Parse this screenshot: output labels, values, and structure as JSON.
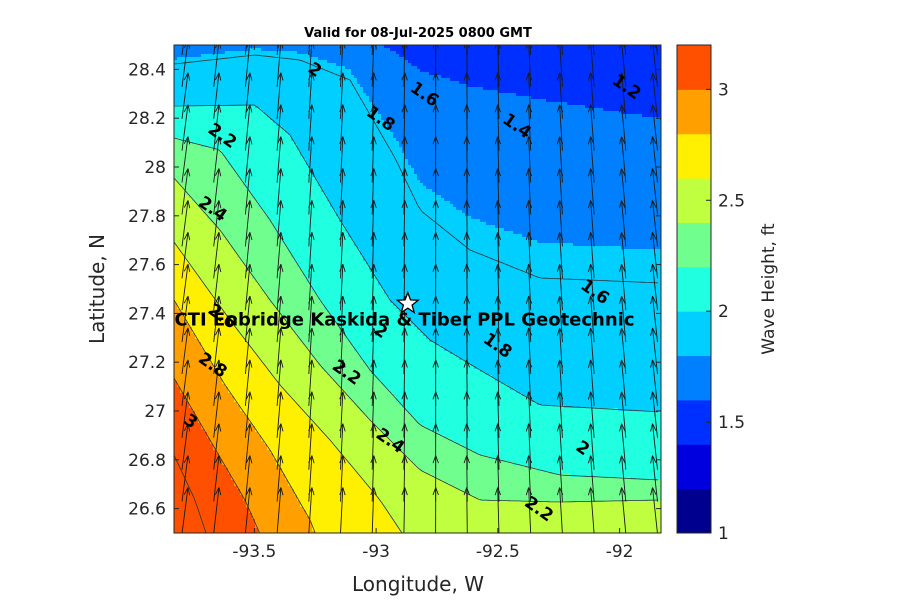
{
  "chart_data": {
    "type": "heatmap",
    "subtype": "filled-contour-with-vector-field",
    "title": "Valid for 08-Jul-2025 0800 GMT",
    "xlabel": "Longitude, W",
    "ylabel": "Latitude, N",
    "colorbar_label": "Wave Height, ft",
    "xlim": [
      -93.83,
      -91.83
    ],
    "ylim": [
      26.5,
      28.5
    ],
    "clim": [
      1.0,
      3.2
    ],
    "x_ticks": [
      -93.5,
      -93,
      -92.5,
      -92
    ],
    "x_tick_labels": [
      "-93.5",
      "-93",
      "-92.5",
      "-92"
    ],
    "y_ticks": [
      26.6,
      26.8,
      27.0,
      27.2,
      27.4,
      27.6,
      27.8,
      28.0,
      28.2,
      28.4
    ],
    "y_tick_labels": [
      "26.6",
      "26.8",
      "27",
      "27.2",
      "27.4",
      "27.6",
      "27.8",
      "28",
      "28.2",
      "28.4"
    ],
    "colorbar_ticks": [
      1,
      1.5,
      2,
      2.5,
      3
    ],
    "colorbar_tick_labels": [
      "1",
      "1.5",
      "2",
      "2.5",
      "3"
    ],
    "levels": [
      1.0,
      1.2,
      1.4,
      1.6,
      1.8,
      2.0,
      2.2,
      2.4,
      2.6,
      2.8,
      3.0,
      3.2
    ],
    "level_colors": [
      "#00008f",
      "#0000df",
      "#0030ff",
      "#0080ff",
      "#00cfff",
      "#20ffdf",
      "#70ff8f",
      "#bfff40",
      "#ffef00",
      "#ff9f00",
      "#ff5000",
      "#ef0000"
    ],
    "site": {
      "label": "CTI Enbridge  Kaskida & Tiber PPL Geotechnic",
      "lon": -92.87,
      "lat": 27.44
    },
    "contour_labels": [
      {
        "text": "2",
        "lon": -93.25,
        "lat": 28.4
      },
      {
        "text": "1.6",
        "lon": -92.8,
        "lat": 28.3
      },
      {
        "text": "1.2",
        "lon": -91.97,
        "lat": 28.33
      },
      {
        "text": "1.8",
        "lon": -92.98,
        "lat": 28.2
      },
      {
        "text": "1.4",
        "lon": -92.42,
        "lat": 28.17
      },
      {
        "text": "2.2",
        "lon": -93.63,
        "lat": 28.13
      },
      {
        "text": "2.4",
        "lon": -93.67,
        "lat": 27.83
      },
      {
        "text": "1.6",
        "lon": -92.1,
        "lat": 27.49
      },
      {
        "text": "2.6",
        "lon": -93.63,
        "lat": 27.39
      },
      {
        "text": "2",
        "lon": -92.98,
        "lat": 27.33
      },
      {
        "text": "1.8",
        "lon": -92.5,
        "lat": 27.27
      },
      {
        "text": "2.8",
        "lon": -93.67,
        "lat": 27.19
      },
      {
        "text": "2.2",
        "lon": -93.12,
        "lat": 27.16
      },
      {
        "text": "3",
        "lon": -93.76,
        "lat": 26.96
      },
      {
        "text": "2.4",
        "lon": -92.94,
        "lat": 26.88
      },
      {
        "text": "2",
        "lon": -92.15,
        "lat": 26.85
      },
      {
        "text": "2.2",
        "lon": -92.33,
        "lat": 26.6
      }
    ],
    "wave_direction": "arrows point northward (toward increasing latitude), tilting slightly east in the west and slightly west in the east"
  }
}
